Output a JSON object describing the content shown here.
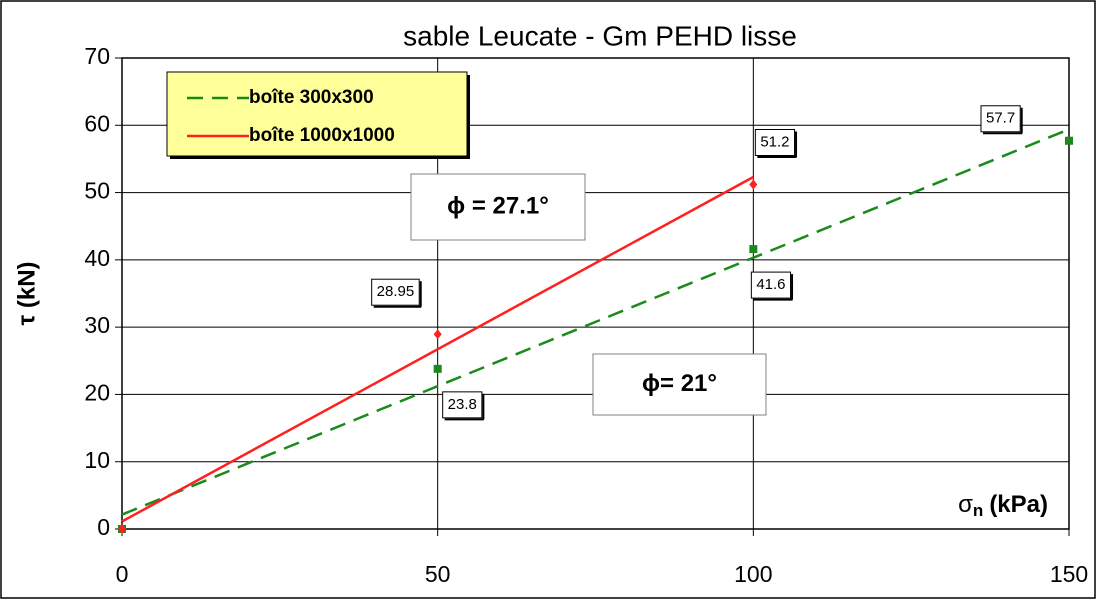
{
  "chart_data": {
    "type": "scatter",
    "title": "sable Leucate - Gm PEHD lisse",
    "xlabel": {
      "symbol": "σ",
      "subscript": "n",
      "unit": "(kPa)"
    },
    "ylabel": "τ (kN)",
    "xlim": [
      0,
      150
    ],
    "xticks": [
      0,
      50,
      100,
      150
    ],
    "ylim": [
      0,
      70
    ],
    "yticks": [
      0,
      10,
      20,
      30,
      40,
      50,
      60,
      70
    ],
    "grid": true,
    "legend": "upper left",
    "trendline": "linear",
    "series": [
      {
        "name": "boîte 300x300",
        "color": "#1a8a1a",
        "dash": true,
        "x": [
          0,
          50,
          100,
          150
        ],
        "values": [
          0,
          23.8,
          41.6,
          57.7
        ]
      },
      {
        "name": "boîte 1000x1000",
        "color": "#ff2020",
        "dash": false,
        "x": [
          0,
          50,
          100
        ],
        "values": [
          0,
          28.95,
          51.2
        ]
      }
    ],
    "annotations": [
      "ϕ = 27.1°",
      "ϕ= 21°"
    ]
  }
}
